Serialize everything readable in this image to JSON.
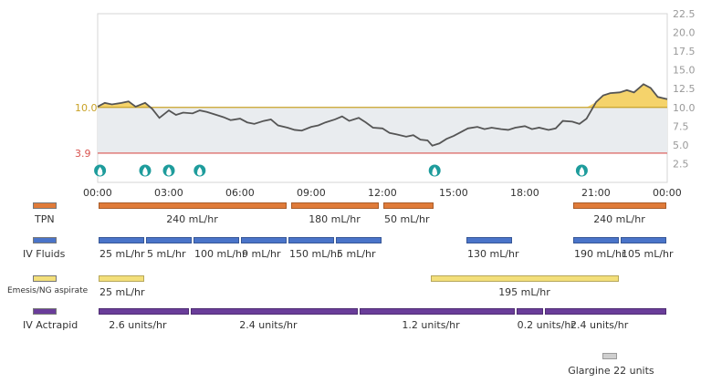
{
  "chart": {
    "y_ticks_right": [
      "22.5",
      "20.0",
      "17.5",
      "15.0",
      "12.5",
      "10.0",
      "7.5",
      "5.0",
      "2.5"
    ],
    "left_marker_high": {
      "label": "10.0",
      "value": 10.0,
      "color": "#c9a227"
    },
    "left_marker_low": {
      "label": "3.9",
      "value": 3.9,
      "color": "#d9534f"
    },
    "x_ticks": [
      "00:00",
      "03:00",
      "06:00",
      "09:00",
      "12:00",
      "15:00",
      "18:00",
      "21:00",
      "00:00"
    ],
    "ylim": [
      0,
      22.5
    ],
    "xlim_hours": [
      0,
      24
    ],
    "glucose_series": {
      "hours": [
        0,
        0.3,
        0.6,
        1,
        1.3,
        1.6,
        2,
        2.3,
        2.6,
        3,
        3.3,
        3.6,
        4,
        4.3,
        4.6,
        5,
        5.3,
        5.6,
        6,
        6.3,
        6.6,
        7,
        7.3,
        7.6,
        8,
        8.3,
        8.6,
        9,
        9.3,
        9.6,
        10,
        10.3,
        10.6,
        11,
        11.3,
        11.6,
        12,
        12.3,
        12.6,
        13,
        13.3,
        13.6,
        13.9,
        14.1,
        14.4,
        14.7,
        15,
        15.3,
        15.6,
        16,
        16.3,
        16.6,
        17,
        17.3,
        17.6,
        18,
        18.3,
        18.6,
        19,
        19.3,
        19.6,
        20,
        20.3,
        20.6,
        21,
        21.3,
        21.6,
        22,
        22.3,
        22.6,
        23,
        23.3,
        23.6,
        24
      ],
      "values": [
        10.1,
        10.6,
        10.4,
        10.6,
        10.8,
        10.1,
        10.6,
        9.8,
        8.6,
        9.6,
        9.0,
        9.3,
        9.2,
        9.6,
        9.4,
        9.0,
        8.7,
        8.3,
        8.5,
        8.0,
        7.8,
        8.2,
        8.4,
        7.6,
        7.3,
        7.0,
        6.9,
        7.4,
        7.6,
        8.0,
        8.4,
        8.8,
        8.2,
        8.6,
        8.0,
        7.3,
        7.2,
        6.6,
        6.4,
        6.1,
        6.3,
        5.7,
        5.6,
        4.9,
        5.2,
        5.8,
        6.2,
        6.7,
        7.2,
        7.4,
        7.1,
        7.3,
        7.1,
        7.0,
        7.3,
        7.5,
        7.1,
        7.3,
        7.0,
        7.2,
        8.2,
        8.1,
        7.8,
        8.5,
        10.7,
        11.6,
        11.9,
        12.0,
        12.3,
        12.0,
        13.1,
        12.6,
        11.4,
        11.1
      ],
      "line_color": "#555555",
      "above_fill": "#f5d36b",
      "band_fill": "#e9ecef"
    },
    "drop_markers_hours": [
      0.1,
      2.0,
      3.0,
      4.3,
      14.2,
      20.4
    ],
    "drop_color": "#1e9c9c"
  },
  "rows": [
    {
      "label": "TPN",
      "label_small": false,
      "color": "#e07b39",
      "bars": [
        {
          "start": 0,
          "end": 8,
          "text": "240 mL/hr"
        },
        {
          "start": 8.1,
          "end": 11.9,
          "text": "180 mL/hr"
        },
        {
          "start": 12,
          "end": 14.2,
          "text": "50 mL/hr"
        },
        {
          "start": 20,
          "end": 24,
          "text": "240 mL/hr"
        }
      ]
    },
    {
      "label": "IV Fluids",
      "label_small": false,
      "color": "#4a74c9",
      "bars": [
        {
          "start": 0,
          "end": 2,
          "text": "25 mL/hr"
        },
        {
          "start": 2,
          "end": 4,
          "text": "5 mL/hr"
        },
        {
          "start": 4,
          "end": 6,
          "text": "100 mL/hr"
        },
        {
          "start": 6,
          "end": 8,
          "text": "9 mL/hr"
        },
        {
          "start": 8,
          "end": 10,
          "text": "150 mL/hr"
        },
        {
          "start": 10,
          "end": 12,
          "text": "5 mL/hr"
        },
        {
          "start": 15.5,
          "end": 17.5,
          "text": "130 mL/hr"
        },
        {
          "start": 20,
          "end": 22,
          "text": "190 mL/hr"
        },
        {
          "start": 22,
          "end": 24,
          "text": "105 mL/hr"
        }
      ]
    },
    {
      "label": "Emesis/NG aspirate",
      "label_small": true,
      "color": "#f3df7a",
      "bars": [
        {
          "start": 0,
          "end": 2,
          "text": "25 mL/hr"
        },
        {
          "start": 14,
          "end": 22,
          "text": "195 mL/hr"
        }
      ]
    },
    {
      "label": "IV Actrapid",
      "label_small": false,
      "color": "#6a3d9a",
      "bars": [
        {
          "start": 0,
          "end": 3.9,
          "text": "2.6 units/hr"
        },
        {
          "start": 3.9,
          "end": 11,
          "text": "2.4 units/hr"
        },
        {
          "start": 11,
          "end": 17.6,
          "text": "1.2 units/hr"
        },
        {
          "start": 17.6,
          "end": 18.8,
          "text": "0.2 units/hr"
        },
        {
          "start": 18.8,
          "end": 24,
          "text": "2.4 units/hr"
        }
      ]
    }
  ],
  "glargine": {
    "text": "Glargine 22 units",
    "hour": 21.2,
    "color": "#cfcfcf"
  }
}
